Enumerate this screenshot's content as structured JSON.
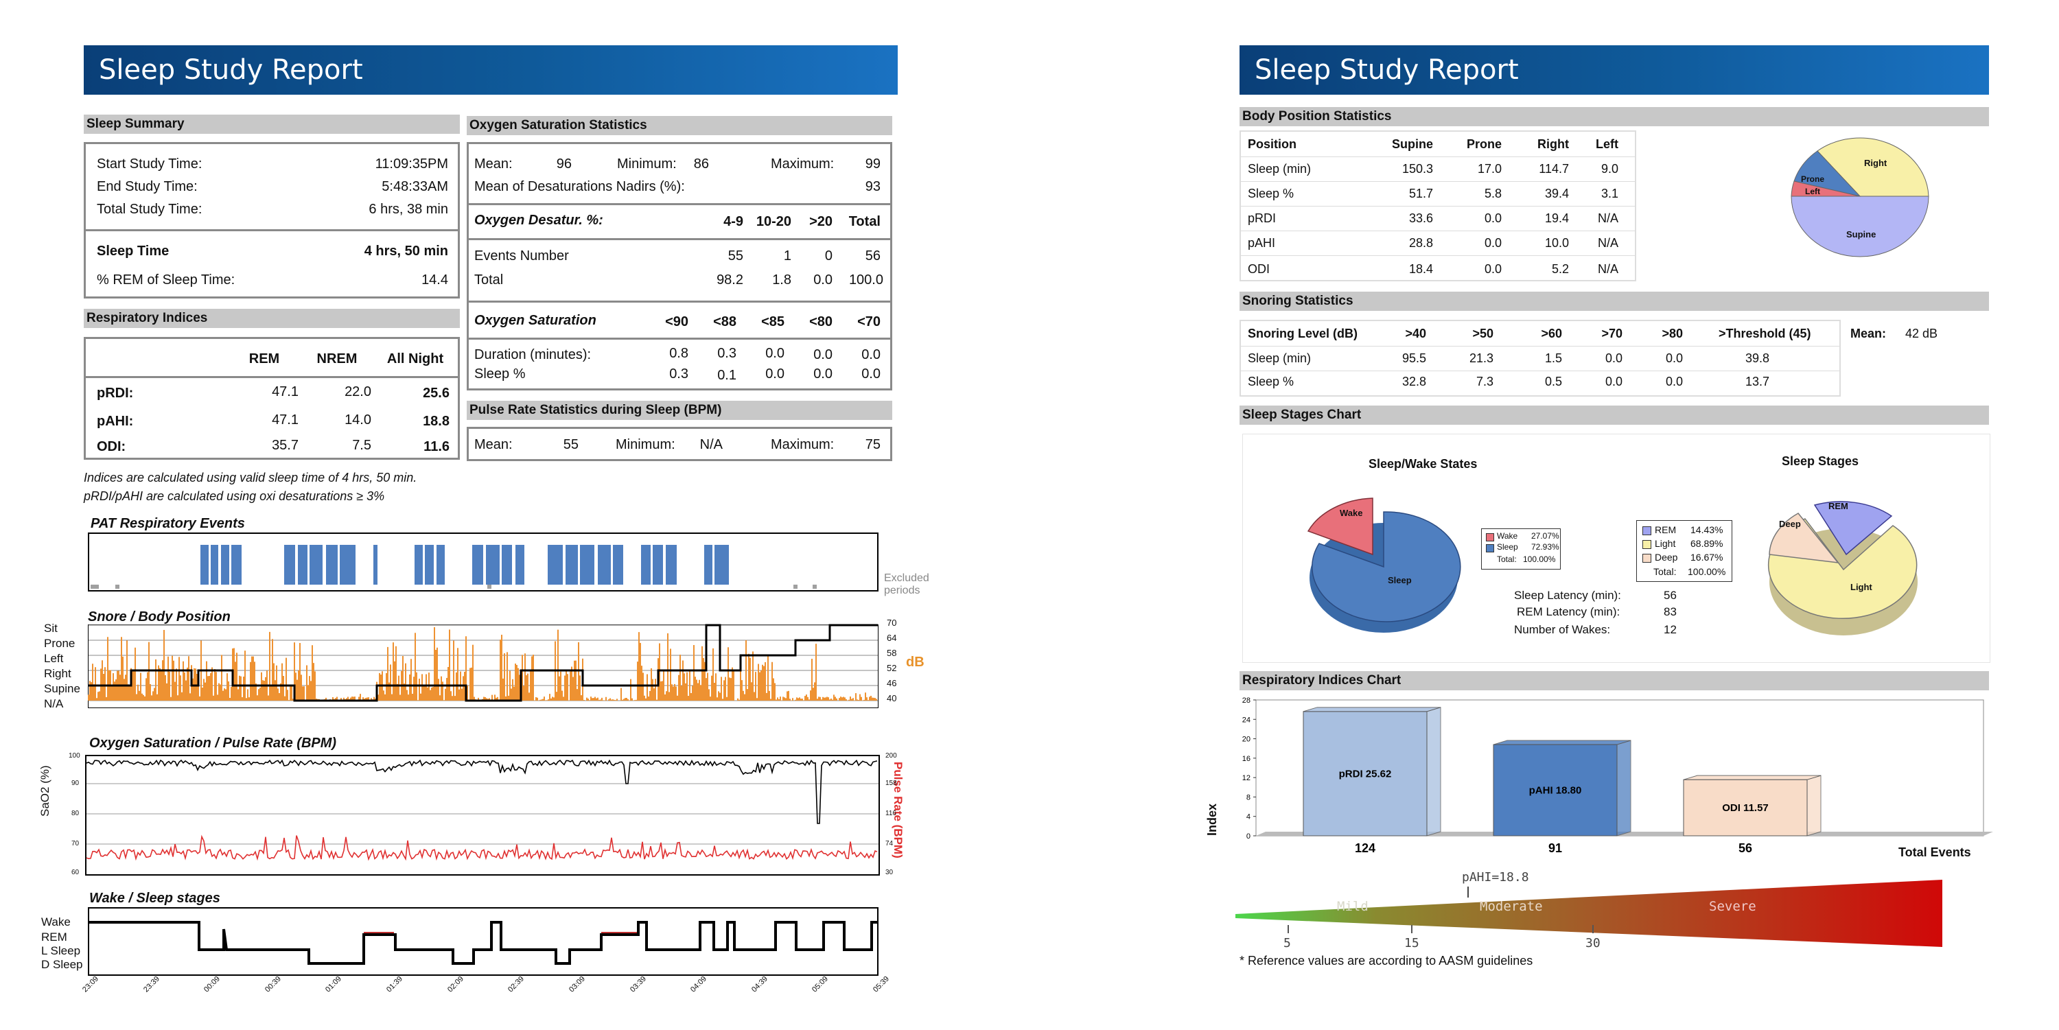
{
  "left_page": {
    "title": "Sleep Study Report",
    "sleep_summary": {
      "heading": "Sleep Summary",
      "start_label": "Start Study Time:",
      "start_value": "11:09:35PM",
      "end_label": "End Study Time:",
      "end_value": "5:48:33AM",
      "total_label": "Total Study Time:",
      "total_value": "6 hrs, 38 min",
      "sleep_time_label": "Sleep Time",
      "sleep_time_value": "4 hrs, 50 min",
      "rem_label": "% REM of Sleep Time:",
      "rem_value": "14.4"
    },
    "respiratory_indices": {
      "heading": "Respiratory Indices",
      "headers": [
        "REM",
        "NREM",
        "All Night"
      ],
      "rows": [
        {
          "label": "pRDI:",
          "rem": "47.1",
          "nrem": "22.0",
          "all": "25.6"
        },
        {
          "label": "pAHI:",
          "rem": "47.1",
          "nrem": "14.0",
          "all": "18.8"
        },
        {
          "label": "ODI:",
          "rem": "35.7",
          "nrem": "7.5",
          "all": "11.6"
        }
      ],
      "note1": "Indices are calculated using valid sleep time of 4 hrs, 50 min.",
      "note2": "pRDI/pAHI are calculated using oxi desaturations ≥ 3%"
    },
    "oxygen": {
      "heading": "Oxygen Saturation Statistics",
      "mean_label": "Mean:",
      "mean": "96",
      "min_label": "Minimum:",
      "min": "86",
      "max_label": "Maximum:",
      "max": "99",
      "nadir_label": "Mean of Desaturations Nadirs (%):",
      "nadir": "93",
      "desat_title": "Oxygen Desatur. %:",
      "desat_headers": [
        "4-9",
        "10-20",
        ">20",
        "Total"
      ],
      "events_label": "Events Number",
      "events": [
        "55",
        "1",
        "0",
        "56"
      ],
      "total_label": "Total",
      "total": [
        "98.2",
        "1.8",
        "0.0",
        "100.0"
      ],
      "sat_title": "Oxygen Saturation",
      "sat_headers": [
        "<90",
        "<88",
        "<85",
        "<80",
        "<70"
      ],
      "duration_label": "Duration (minutes):",
      "duration": [
        "0.8",
        "0.3",
        "0.0",
        "0.0",
        "0.0"
      ],
      "sleep_pct_label": "Sleep %",
      "sleep_pct": [
        "0.3",
        "0.1",
        "0.0",
        "0.0",
        "0.0"
      ]
    },
    "pulse": {
      "heading": "Pulse Rate Statistics during Sleep (BPM)",
      "mean_label": "Mean:",
      "mean": "55",
      "min_label": "Minimum:",
      "min": "N/A",
      "max_label": "Maximum:",
      "max": "75"
    },
    "charts": {
      "pat_title": "PAT Respiratory Events",
      "excluded": "Excluded",
      "periods": "periods",
      "snore_title": "Snore / Body Position",
      "positions": [
        "Sit",
        "Prone",
        "Left",
        "Right",
        "Supine",
        "N/A"
      ],
      "db_ticks": [
        "70",
        "64",
        "58",
        "52",
        "46",
        "40"
      ],
      "db_label": "dB",
      "oxy_title": "Oxygen Saturation / Pulse Rate (BPM)",
      "sao2_label": "SaO2 (%)",
      "pulse_label": "Pulse Rate (BPM)",
      "sao2_ticks": [
        "100",
        "90",
        "80",
        "70",
        "60"
      ],
      "pulse_ticks": [
        "200",
        "158",
        "116",
        "74",
        "30"
      ],
      "wake_title": "Wake / Sleep stages",
      "stages": [
        "Wake",
        "REM",
        "L Sleep",
        "D Sleep"
      ],
      "time_ticks": [
        "23:09",
        "23:39",
        "00:09",
        "00:39",
        "01:09",
        "01:39",
        "02:09",
        "02:39",
        "03:09",
        "03:39",
        "04:09",
        "04:39",
        "05:09",
        "05:39"
      ]
    }
  },
  "right_page": {
    "title": "Sleep Study Report",
    "body_position": {
      "heading": "Body Position Statistics",
      "headers": [
        "Position",
        "Supine",
        "Prone",
        "Right",
        "Left"
      ],
      "rows": [
        [
          "Sleep (min)",
          "150.3",
          "17.0",
          "114.7",
          "9.0"
        ],
        [
          "Sleep %",
          "51.7",
          "5.8",
          "39.4",
          "3.1"
        ],
        [
          "pRDI",
          "33.6",
          "0.0",
          "19.4",
          "N/A"
        ],
        [
          "pAHI",
          "28.8",
          "0.0",
          "10.0",
          "N/A"
        ],
        [
          "ODI",
          "18.4",
          "0.0",
          "5.2",
          "N/A"
        ]
      ],
      "pie_labels": {
        "right": "Right",
        "prone": "Prone",
        "left": "Left",
        "supine": "Supine"
      }
    },
    "snoring": {
      "heading": "Snoring Statistics",
      "headers": [
        "Snoring Level (dB)",
        ">40",
        ">50",
        ">60",
        ">70",
        ">80",
        ">Threshold (45)"
      ],
      "rows": [
        [
          "Sleep (min)",
          "95.5",
          "21.3",
          "1.5",
          "0.0",
          "0.0",
          "39.8"
        ],
        [
          "Sleep %",
          "32.8",
          "7.3",
          "0.5",
          "0.0",
          "0.0",
          "13.7"
        ]
      ],
      "mean_label": "Mean:",
      "mean": "42 dB"
    },
    "sleep_stages": {
      "heading": "Sleep Stages Chart",
      "ws_title": "Sleep/Wake States",
      "wake_label": "Wake",
      "sleep_label": "Sleep",
      "ws_legend": [
        {
          "name": "Wake",
          "pct": "27.07%",
          "color": "#e8707a"
        },
        {
          "name": "Sleep",
          "pct": "72.93%",
          "color": "#4f7fc0"
        }
      ],
      "ws_total_label": "Total:",
      "ws_total": "100.00%",
      "latency_label": "Sleep Latency (min):",
      "latency": "56",
      "rem_latency_label": "REM Latency (min):",
      "rem_latency": "83",
      "wakes_label": "Number of Wakes:",
      "wakes": "12",
      "st_title": "Sleep Stages",
      "rem_label": "REM",
      "deep_label": "Deep",
      "light_label": "Light",
      "st_legend": [
        {
          "name": "REM",
          "pct": "14.43%",
          "color": "#9fa3f0"
        },
        {
          "name": "Light",
          "pct": "68.89%",
          "color": "#f8f0a8"
        },
        {
          "name": "Deep",
          "pct": "16.67%",
          "color": "#f8dcc8"
        }
      ],
      "st_total_label": "Total:",
      "st_total": "100.00%"
    },
    "resp_chart": {
      "heading": "Respiratory Indices Chart",
      "y_label": "Index",
      "y_ticks": [
        "28",
        "24",
        "20",
        "16",
        "12",
        "8",
        "4",
        "0"
      ],
      "total_events_label": "Total Events",
      "pahi_marker": "pAHI=18.8",
      "severity": [
        "Mild",
        "Moderate",
        "Severe"
      ],
      "severity_ticks": [
        "5",
        "15",
        "30"
      ],
      "footnote": "* Reference values are according to AASM guidelines"
    }
  },
  "chart_data": {
    "type": "bar",
    "title": "Respiratory Indices Chart",
    "ylabel": "Index",
    "ylim": [
      0,
      28
    ],
    "categories": [
      "pRDI 25.62",
      "pAHI 18.80",
      "ODI 11.57"
    ],
    "values": [
      25.62,
      18.8,
      11.57
    ],
    "total_events": [
      "124",
      "91",
      "56"
    ],
    "colors": [
      "#a8bfe0",
      "#4f7fc0",
      "#f8dcc8"
    ]
  }
}
